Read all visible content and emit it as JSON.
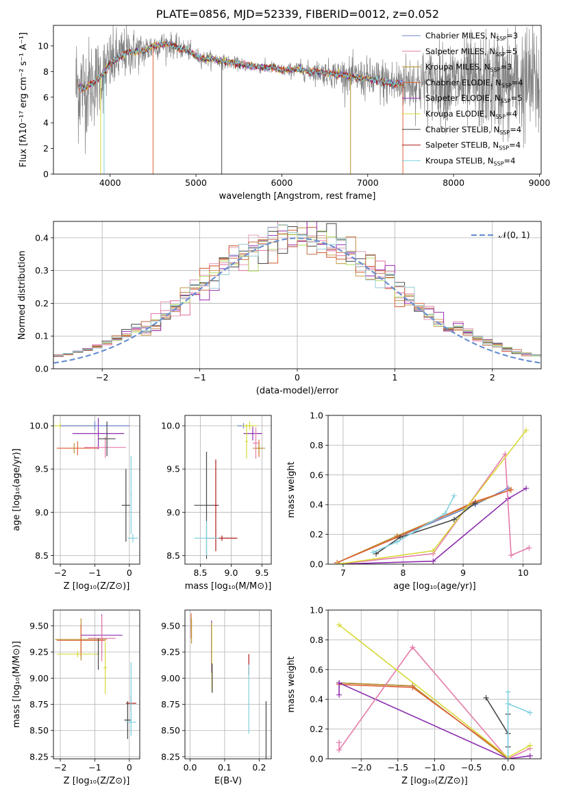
{
  "title": "PLATE=0856, MJD=52339, FIBERID=0012, z=0.052",
  "colors": {
    "chabrier_miles": "#6b80c9",
    "salpeter_miles": "#e47aa9",
    "kroupa_miles": "#b9902a",
    "chabrier_elodie": "#e06238",
    "salpeter_elodie": "#8b2cad",
    "kroupa_elodie": "#d7d835",
    "chabrier_stelib": "#444444",
    "salpeter_stelib": "#b01818",
    "kroupa_stelib": "#7fd0de",
    "data": "#808080",
    "gauss": "#6a8fd0"
  },
  "chart_data": [
    {
      "id": "spectrum",
      "type": "line",
      "xlabel": "wavelength [Angstrom, rest frame]",
      "ylabel": "Flux [fλ10⁻¹⁷ erg cm⁻² s⁻¹ A⁻¹]",
      "xlim": [
        3340,
        9020
      ],
      "ylim": [
        0,
        11.6
      ],
      "xticks": [
        4000,
        5000,
        6000,
        7000,
        8000,
        9000
      ],
      "yticks": [
        0,
        2,
        4,
        6,
        8,
        10
      ],
      "legend_position": "top-right",
      "legend": [
        {
          "name": "Chabrier MILES, N",
          "sub": "SSP",
          "eq": "=3",
          "color_key": "chabrier_miles"
        },
        {
          "name": "Salpeter MILES, N",
          "sub": "SSP",
          "eq": "=5",
          "color_key": "salpeter_miles"
        },
        {
          "name": "Kroupa MILES, N",
          "sub": "SSP",
          "eq": "=3",
          "color_key": "kroupa_miles"
        },
        {
          "name": "Chabrier ELODIE, N",
          "sub": "SSP",
          "eq": "=4",
          "color_key": "chabrier_elodie"
        },
        {
          "name": "Salpeter ELODIE, N",
          "sub": "SSP",
          "eq": "=5",
          "color_key": "salpeter_elodie"
        },
        {
          "name": "Kroupa ELODIE, N",
          "sub": "SSP",
          "eq": "=4",
          "color_key": "kroupa_elodie"
        },
        {
          "name": "Chabrier STELIB, N",
          "sub": "SSP",
          "eq": "=4",
          "color_key": "chabrier_stelib"
        },
        {
          "name": "Salpeter STELIB, N",
          "sub": "SSP",
          "eq": "=4",
          "color_key": "salpeter_stelib"
        },
        {
          "name": "Kroupa STELIB, N",
          "sub": "SSP",
          "eq": "=4",
          "color_key": "kroupa_stelib"
        }
      ],
      "model_continuum": [
        [
          3600,
          6.9
        ],
        [
          3700,
          6.7
        ],
        [
          3800,
          7.1
        ],
        [
          3900,
          7.6
        ],
        [
          4000,
          8.6
        ],
        [
          4100,
          9.1
        ],
        [
          4200,
          9.5
        ],
        [
          4300,
          9.6
        ],
        [
          4400,
          9.6
        ],
        [
          4500,
          10.0
        ],
        [
          4600,
          10.1
        ],
        [
          4700,
          10.1
        ],
        [
          4800,
          9.8
        ],
        [
          4900,
          9.7
        ],
        [
          5000,
          9.2
        ],
        [
          5100,
          9.0
        ],
        [
          5200,
          9.0
        ],
        [
          5300,
          8.8
        ],
        [
          5400,
          8.7
        ],
        [
          5500,
          8.6
        ],
        [
          5600,
          8.5
        ],
        [
          5700,
          8.4
        ],
        [
          5800,
          8.3
        ],
        [
          5900,
          8.3
        ],
        [
          6000,
          8.1
        ],
        [
          6100,
          8.1
        ],
        [
          6200,
          8.2
        ],
        [
          6300,
          8.0
        ],
        [
          6400,
          8.0
        ],
        [
          6500,
          7.9
        ],
        [
          6600,
          7.8
        ],
        [
          6700,
          7.8
        ],
        [
          6800,
          7.6
        ],
        [
          6900,
          7.5
        ],
        [
          7000,
          7.4
        ],
        [
          7100,
          7.3
        ],
        [
          7200,
          7.2
        ],
        [
          7300,
          7.0
        ],
        [
          7400,
          7.1
        ]
      ],
      "data_range": [
        3600,
        9000
      ],
      "data_noise_sigma": [
        [
          3600,
          2.8
        ],
        [
          4000,
          1.6
        ],
        [
          4500,
          0.7
        ],
        [
          5000,
          0.4
        ],
        [
          5500,
          0.3
        ],
        [
          6000,
          0.3
        ],
        [
          6500,
          0.6
        ],
        [
          7000,
          1.0
        ],
        [
          7500,
          1.4
        ],
        [
          8000,
          2.0
        ],
        [
          8500,
          2.5
        ],
        [
          9000,
          3.0
        ]
      ]
    },
    {
      "id": "residual-hist",
      "type": "histogram",
      "xlabel": "(data-model)/error",
      "ylabel": "Normed distribution",
      "xlim": [
        -2.5,
        2.5
      ],
      "ylim": [
        0,
        0.45
      ],
      "xticks": [
        -2,
        -1,
        0,
        1,
        2
      ],
      "yticks": [
        0.0,
        0.1,
        0.2,
        0.3,
        0.4
      ],
      "grid": true,
      "legend_position": "top-right",
      "gauss_label": "𝒩(0, 1)",
      "bin_width": 0.1
    },
    {
      "id": "age-vs-z",
      "type": "scatter",
      "xlabel": "Z [log₁₀(Z/Z⊙)]",
      "ylabel": "age  [log₁₀(age/yr)]",
      "xlim": [
        -2.2,
        0.3
      ],
      "ylim": [
        8.4,
        10.12
      ],
      "xticks": [
        -2,
        -1,
        0
      ],
      "yticks": [
        8.5,
        9.0,
        9.5,
        10.0
      ],
      "grid": true,
      "points": [
        {
          "x": -2.0,
          "y": 10.0,
          "xe": 1.0,
          "ye": 0.03,
          "color_key": "kroupa_elodie"
        },
        {
          "x": -1.6,
          "y": 9.74,
          "xe": 0.5,
          "ye": 0.06,
          "color_key": "kroupa_miles"
        },
        {
          "x": -1.5,
          "y": 9.74,
          "xe": 0.6,
          "ye": 0.08,
          "color_key": "chabrier_elodie"
        },
        {
          "x": -0.9,
          "y": 9.91,
          "xe": 0.75,
          "ye": 0.18,
          "color_key": "salpeter_elodie"
        },
        {
          "x": -0.7,
          "y": 9.75,
          "xe": 0.6,
          "ye": 0.12,
          "color_key": "salpeter_miles"
        },
        {
          "x": -1.0,
          "y": 10.0,
          "xe": 1.0,
          "ye": 0.05,
          "color_key": "chabrier_miles"
        },
        {
          "x": -0.65,
          "y": 9.85,
          "xe": 0.25,
          "ye": 0.2,
          "color_key": "chabrier_stelib"
        },
        {
          "x": -0.1,
          "y": 9.08,
          "xe": 0.12,
          "ye": 0.42,
          "color_key": "chabrier_stelib"
        },
        {
          "x": 0.1,
          "y": 8.7,
          "xe": 0.15,
          "ye": 0.05,
          "color_key": "kroupa_stelib"
        },
        {
          "x": 0.05,
          "y": 9.2,
          "xe": 0.02,
          "ye": 0.45,
          "color_key": "kroupa_stelib"
        }
      ]
    },
    {
      "id": "age-vs-mass",
      "type": "scatter",
      "xlabel": "mass [log₁₀(M/M⊙)]",
      "ylabel": "",
      "xlim": [
        8.25,
        9.65
      ],
      "ylim": [
        8.4,
        10.12
      ],
      "xticks": [
        8.5,
        9.0,
        9.5
      ],
      "yticks": [
        8.5,
        9.0,
        9.5,
        10.0
      ],
      "grid": true,
      "points": [
        {
          "x": 9.2,
          "y": 10.0,
          "xe": 0.1,
          "ye": 0.03,
          "color_key": "chabrier_miles"
        },
        {
          "x": 9.3,
          "y": 10.0,
          "xe": 0.12,
          "ye": 0.05,
          "color_key": "kroupa_elodie"
        },
        {
          "x": 9.35,
          "y": 9.91,
          "xe": 0.15,
          "ye": 0.08,
          "color_key": "salpeter_elodie"
        },
        {
          "x": 9.45,
          "y": 9.74,
          "xe": 0.05,
          "ye": 0.1,
          "color_key": "chabrier_elodie"
        },
        {
          "x": 9.45,
          "y": 9.74,
          "xe": 0.1,
          "ye": 0.06,
          "color_key": "kroupa_miles"
        },
        {
          "x": 9.4,
          "y": 9.8,
          "xe": 0.05,
          "ye": 0.18,
          "color_key": "salpeter_miles"
        },
        {
          "x": 9.25,
          "y": 9.82,
          "xe": 0.02,
          "ye": 0.2,
          "color_key": "kroupa_elodie"
        },
        {
          "x": 8.6,
          "y": 9.08,
          "xe": 0.2,
          "ye": 0.62,
          "color_key": "chabrier_stelib"
        },
        {
          "x": 8.75,
          "y": 9.08,
          "xe": 0.02,
          "ye": 0.53,
          "color_key": "salpeter_stelib"
        },
        {
          "x": 8.85,
          "y": 8.7,
          "xe": 0.25,
          "ye": 0.03,
          "color_key": "salpeter_stelib"
        },
        {
          "x": 8.6,
          "y": 8.7,
          "xe": 0.2,
          "ye": 0.2,
          "color_key": "kroupa_stelib"
        }
      ]
    },
    {
      "id": "massweight-vs-age",
      "type": "line",
      "xlabel": "age  [log₁₀(age/yr)]",
      "ylabel": "mass weight",
      "xlim": [
        6.75,
        10.3
      ],
      "ylim": [
        0,
        1.0
      ],
      "xticks": [
        7,
        8,
        9,
        10
      ],
      "yticks": [
        0.0,
        0.2,
        0.4,
        0.6,
        0.8,
        1.0
      ],
      "grid": true,
      "series": [
        {
          "color_key": "chabrier_miles",
          "x": [
            6.9,
            7.9,
            9.2,
            9.75
          ],
          "y": [
            0.01,
            0.18,
            0.4,
            0.51
          ]
        },
        {
          "color_key": "kroupa_miles",
          "x": [
            6.9,
            7.9,
            9.2,
            9.78
          ],
          "y": [
            0.01,
            0.19,
            0.41,
            0.5
          ]
        },
        {
          "color_key": "chabrier_elodie",
          "x": [
            6.9,
            7.9,
            9.2,
            9.8
          ],
          "y": [
            0.01,
            0.18,
            0.42,
            0.5
          ]
        },
        {
          "color_key": "salpeter_elodie",
          "x": [
            6.9,
            8.5,
            9.75,
            10.05
          ],
          "y": [
            0.0,
            0.02,
            0.44,
            0.51
          ]
        },
        {
          "color_key": "salpeter_miles",
          "x": [
            6.9,
            8.5,
            9.7,
            9.8,
            10.1
          ],
          "y": [
            0.0,
            0.07,
            0.74,
            0.06,
            0.11
          ]
        },
        {
          "color_key": "kroupa_elodie",
          "x": [
            6.9,
            8.5,
            10.05
          ],
          "y": [
            0.0,
            0.09,
            0.9
          ]
        },
        {
          "color_key": "chabrier_stelib",
          "x": [
            7.55,
            7.95,
            8.85,
            9.2
          ],
          "y": [
            0.07,
            0.18,
            0.3,
            0.41
          ]
        },
        {
          "color_key": "kroupa_stelib",
          "x": [
            7.5,
            7.9,
            8.7,
            8.85
          ],
          "y": [
            0.08,
            0.15,
            0.34,
            0.46
          ]
        }
      ]
    },
    {
      "id": "mass-vs-z",
      "type": "scatter",
      "xlabel": "Z [log₁₀(Z/Z⊙)]",
      "ylabel": "mass [log₁₀(M/M⊙)]",
      "xlim": [
        -2.2,
        0.3
      ],
      "ylim": [
        8.23,
        9.65
      ],
      "xticks": [
        -2,
        -1,
        0
      ],
      "yticks": [
        8.25,
        8.5,
        8.75,
        9.0,
        9.25,
        9.5
      ],
      "grid": true,
      "points": [
        {
          "x": -1.4,
          "y": 9.37,
          "xe": 0.75,
          "ye": 0.2,
          "color_key": "kroupa_miles"
        },
        {
          "x": -1.4,
          "y": 9.36,
          "xe": 0.7,
          "ye": 0.15,
          "color_key": "chabrier_elodie"
        },
        {
          "x": -0.8,
          "y": 9.41,
          "xe": 0.6,
          "ye": 0.2,
          "color_key": "salpeter_elodie"
        },
        {
          "x": -0.8,
          "y": 9.38,
          "xe": 0.4,
          "ye": 0.22,
          "color_key": "salpeter_miles"
        },
        {
          "x": -1.5,
          "y": 9.23,
          "xe": 0.6,
          "ye": 0.03,
          "color_key": "kroupa_elodie"
        },
        {
          "x": -0.7,
          "y": 9.1,
          "xe": 0.05,
          "ye": 0.25,
          "color_key": "kroupa_elodie"
        },
        {
          "x": -0.9,
          "y": 9.23,
          "xe": 0.02,
          "ye": 0.15,
          "color_key": "chabrier_stelib"
        },
        {
          "x": 0.05,
          "y": 8.76,
          "xe": 0.15,
          "ye": 0.08,
          "color_key": "salpeter_stelib"
        },
        {
          "x": -0.05,
          "y": 8.6,
          "xe": 0.1,
          "ye": 0.18,
          "color_key": "chabrier_stelib"
        },
        {
          "x": 0.05,
          "y": 8.58,
          "xe": 0.15,
          "ye": 0.1,
          "color_key": "kroupa_stelib"
        },
        {
          "x": 0.05,
          "y": 8.8,
          "xe": 0.02,
          "ye": 0.35,
          "color_key": "kroupa_stelib"
        }
      ]
    },
    {
      "id": "mass-vs-ebv",
      "type": "scatter",
      "xlabel": "E(B-V)",
      "ylabel": "",
      "xlim": [
        -0.015,
        0.235
      ],
      "ylim": [
        8.23,
        9.65
      ],
      "xticks": [
        0.0,
        0.1,
        0.2
      ],
      "yticks": [
        8.25,
        8.5,
        8.75,
        9.0,
        9.25,
        9.5
      ],
      "grid": true,
      "points": [
        {
          "x": 0.003,
          "y": 9.5,
          "xe": 0,
          "ye": 0.12,
          "color_key": "chabrier_elodie"
        },
        {
          "x": 0.004,
          "y": 9.45,
          "xe": 0,
          "ye": 0.12,
          "color_key": "kroupa_miles"
        },
        {
          "x": 0.062,
          "y": 9.3,
          "xe": 0,
          "ye": 0.25,
          "color_key": "salpeter_elodie"
        },
        {
          "x": 0.063,
          "y": 9.2,
          "xe": 0,
          "ye": 0.33,
          "color_key": "kroupa_elodie"
        },
        {
          "x": 0.064,
          "y": 9.0,
          "xe": 0,
          "ye": 0.14,
          "color_key": "chabrier_stelib"
        },
        {
          "x": 0.17,
          "y": 9.13,
          "xe": 0,
          "ye": 0.1,
          "color_key": "salpeter_stelib"
        },
        {
          "x": 0.17,
          "y": 8.8,
          "xe": 0,
          "ye": 0.33,
          "color_key": "kroupa_stelib"
        },
        {
          "x": 0.22,
          "y": 8.5,
          "xe": 0,
          "ye": 0.28,
          "color_key": "chabrier_stelib"
        }
      ]
    },
    {
      "id": "massweight-vs-z",
      "type": "line",
      "xlabel": "Z [log₁₀(Z/Z⊙)]",
      "ylabel": "mass weight",
      "xlim": [
        -2.45,
        0.45
      ],
      "ylim": [
        0,
        1.0
      ],
      "xticks": [
        -2.0,
        -1.5,
        -1.0,
        -0.5,
        0.0
      ],
      "yticks": [
        0.0,
        0.2,
        0.4,
        0.6,
        0.8,
        1.0
      ],
      "grid": true,
      "series": [
        {
          "color_key": "chabrier_miles",
          "x": [
            -2.3,
            -1.3,
            0.0
          ],
          "y": [
            0.51,
            0.49,
            0.0
          ]
        },
        {
          "color_key": "kroupa_miles",
          "x": [
            -2.3,
            -1.3,
            0.0
          ],
          "y": [
            0.51,
            0.49,
            0.0
          ]
        },
        {
          "color_key": "chabrier_elodie",
          "x": [
            -2.3,
            -1.3,
            0.0
          ],
          "y": [
            0.5,
            0.48,
            0.01
          ]
        },
        {
          "color_key": "salpeter_elodie",
          "x": [
            -2.3,
            -2.3,
            0.0,
            0.3
          ],
          "y": [
            0.43,
            0.51,
            0.0,
            0.02
          ]
        },
        {
          "color_key": "salpeter_miles",
          "x": [
            -2.3,
            -2.3,
            -1.3,
            0.0,
            0.3
          ],
          "y": [
            0.11,
            0.06,
            0.75,
            0.0,
            0.07
          ]
        },
        {
          "color_key": "kroupa_elodie",
          "x": [
            -2.3,
            0.0,
            0.3
          ],
          "y": [
            0.9,
            0.01,
            0.09
          ]
        },
        {
          "color_key": "chabrier_stelib",
          "x": [
            -0.3,
            0.0,
            0.0,
            0.0
          ],
          "y": [
            0.41,
            0.17,
            0.08,
            0.3
          ]
        },
        {
          "color_key": "kroupa_stelib",
          "x": [
            0.0,
            0.0,
            0.0,
            0.3
          ],
          "y": [
            0.0,
            0.45,
            0.37,
            0.31
          ]
        }
      ]
    }
  ]
}
